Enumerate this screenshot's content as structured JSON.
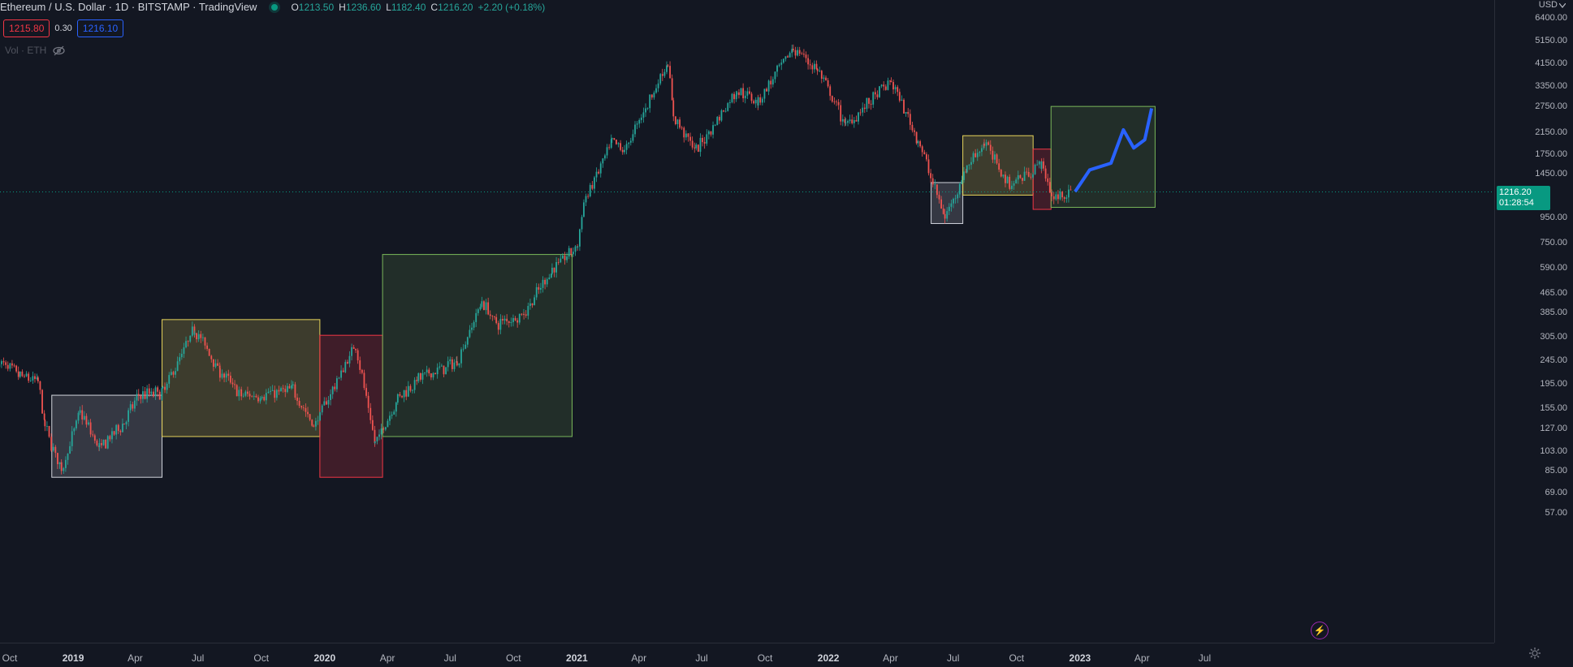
{
  "legend": {
    "title": "Ethereum / U.S. Dollar · 1D · BITSTAMP · TradingView",
    "ohlc": [
      {
        "key": "O",
        "value": "1213.50"
      },
      {
        "key": "H",
        "value": "1236.60"
      },
      {
        "key": "L",
        "value": "1182.40"
      },
      {
        "key": "C",
        "value": "1216.20"
      }
    ],
    "change": "+2.20 (+0.18%)"
  },
  "trade": {
    "sell_price": "1215.80",
    "spread": "0.30",
    "buy_price": "1216.10"
  },
  "volume": {
    "label": "Vol · ETH"
  },
  "price_scale": {
    "currency": "USD",
    "ticks": [
      "6400.00",
      "5150.00",
      "4150.00",
      "3350.00",
      "2750.00",
      "2150.00",
      "1750.00",
      "1450.00",
      "950.00",
      "750.00",
      "590.00",
      "465.00",
      "385.00",
      "305.00",
      "245.00",
      "195.00",
      "155.00",
      "127.00",
      "103.00",
      "85.00",
      "69.00",
      "57.00"
    ]
  },
  "last_price": {
    "value": "1216.20",
    "countdown": "01:28:54"
  },
  "time_scale": {
    "labels": [
      {
        "text": "Oct",
        "year": false
      },
      {
        "text": "2019",
        "year": true
      },
      {
        "text": "Apr",
        "year": false
      },
      {
        "text": "Jul",
        "year": false
      },
      {
        "text": "Oct",
        "year": false
      },
      {
        "text": "2020",
        "year": true
      },
      {
        "text": "Apr",
        "year": false
      },
      {
        "text": "Jul",
        "year": false
      },
      {
        "text": "Oct",
        "year": false
      },
      {
        "text": "2021",
        "year": true
      },
      {
        "text": "Apr",
        "year": false
      },
      {
        "text": "Jul",
        "year": false
      },
      {
        "text": "Oct",
        "year": false
      },
      {
        "text": "2022",
        "year": true
      },
      {
        "text": "Apr",
        "year": false
      },
      {
        "text": "Jul",
        "year": false
      },
      {
        "text": "Oct",
        "year": false
      },
      {
        "text": "2023",
        "year": true
      },
      {
        "text": "Apr",
        "year": false
      },
      {
        "text": "Jul",
        "year": false
      }
    ]
  },
  "colors": {
    "background": "#131722",
    "up": "#26a69a",
    "down": "#ef5350",
    "projection": "#2962ff",
    "box_white": "#d1d4dc",
    "box_yellow": "#e6d35a",
    "box_red": "#f23645",
    "box_green": "#7ab85a"
  },
  "chart_data": {
    "type": "candlestick",
    "symbol": "ETHUSD",
    "exchange": "BITSTAMP",
    "interval": "1D",
    "scale": "log",
    "price_path": [
      {
        "date": "2018-09-15",
        "price": 240
      },
      {
        "date": "2018-10-15",
        "price": 210
      },
      {
        "date": "2018-11-10",
        "price": 200
      },
      {
        "date": "2018-11-20",
        "price": 130
      },
      {
        "date": "2018-12-14",
        "price": 85
      },
      {
        "date": "2019-01-10",
        "price": 150
      },
      {
        "date": "2019-02-07",
        "price": 105
      },
      {
        "date": "2019-03-15",
        "price": 135
      },
      {
        "date": "2019-04-05",
        "price": 175
      },
      {
        "date": "2019-05-10",
        "price": 180
      },
      {
        "date": "2019-06-25",
        "price": 330
      },
      {
        "date": "2019-08-01",
        "price": 220
      },
      {
        "date": "2019-09-01",
        "price": 175
      },
      {
        "date": "2019-10-01",
        "price": 175
      },
      {
        "date": "2019-11-15",
        "price": 185
      },
      {
        "date": "2019-12-15",
        "price": 130
      },
      {
        "date": "2020-02-14",
        "price": 285
      },
      {
        "date": "2020-03-13",
        "price": 110
      },
      {
        "date": "2020-04-15",
        "price": 170
      },
      {
        "date": "2020-05-15",
        "price": 205
      },
      {
        "date": "2020-07-10",
        "price": 240
      },
      {
        "date": "2020-08-15",
        "price": 430
      },
      {
        "date": "2020-09-05",
        "price": 345
      },
      {
        "date": "2020-10-15",
        "price": 380
      },
      {
        "date": "2020-11-25",
        "price": 580
      },
      {
        "date": "2021-01-01",
        "price": 730
      },
      {
        "date": "2021-01-10",
        "price": 1100
      },
      {
        "date": "2021-02-20",
        "price": 1950
      },
      {
        "date": "2021-03-10",
        "price": 1800
      },
      {
        "date": "2021-05-12",
        "price": 4200
      },
      {
        "date": "2021-05-20",
        "price": 2500
      },
      {
        "date": "2021-06-22",
        "price": 1800
      },
      {
        "date": "2021-08-20",
        "price": 3200
      },
      {
        "date": "2021-09-20",
        "price": 2900
      },
      {
        "date": "2021-11-10",
        "price": 4800
      },
      {
        "date": "2021-12-15",
        "price": 3900
      },
      {
        "date": "2022-01-25",
        "price": 2300
      },
      {
        "date": "2022-04-01",
        "price": 3500
      },
      {
        "date": "2022-05-10",
        "price": 2000
      },
      {
        "date": "2022-06-18",
        "price": 950
      },
      {
        "date": "2022-07-20",
        "price": 1550
      },
      {
        "date": "2022-08-14",
        "price": 1950
      },
      {
        "date": "2022-09-20",
        "price": 1300
      },
      {
        "date": "2022-11-05",
        "price": 1600
      },
      {
        "date": "2022-11-20",
        "price": 1150
      },
      {
        "date": "2022-12-20",
        "price": 1216
      }
    ],
    "projection": [
      {
        "date": "2022-12-25",
        "price": 1220
      },
      {
        "date": "2023-01-15",
        "price": 1500
      },
      {
        "date": "2023-02-15",
        "price": 1600
      },
      {
        "date": "2023-03-05",
        "price": 2200
      },
      {
        "date": "2023-03-20",
        "price": 1850
      },
      {
        "date": "2023-04-05",
        "price": 2000
      },
      {
        "date": "2023-04-15",
        "price": 2700
      }
    ],
    "zones": [
      {
        "color": "white",
        "start": "2018-12-01",
        "end": "2019-05-10",
        "low": 80,
        "high": 175
      },
      {
        "color": "yellow",
        "start": "2019-05-10",
        "end": "2019-12-25",
        "low": 118,
        "high": 360
      },
      {
        "color": "red",
        "start": "2019-12-25",
        "end": "2020-03-25",
        "low": 80,
        "high": 310
      },
      {
        "color": "green",
        "start": "2020-03-25",
        "end": "2020-12-25",
        "low": 118,
        "high": 670
      },
      {
        "color": "white",
        "start": "2022-05-30",
        "end": "2022-07-15",
        "low": 900,
        "high": 1330
      },
      {
        "color": "yellow",
        "start": "2022-07-15",
        "end": "2022-10-25",
        "low": 1180,
        "high": 2080
      },
      {
        "color": "red",
        "start": "2022-10-25",
        "end": "2022-11-20",
        "low": 1030,
        "high": 1830
      },
      {
        "color": "green",
        "start": "2022-11-20",
        "end": "2023-04-20",
        "low": 1050,
        "high": 2750
      }
    ],
    "ylim": [
      57,
      6400
    ],
    "xlabel": "",
    "ylabel": ""
  }
}
